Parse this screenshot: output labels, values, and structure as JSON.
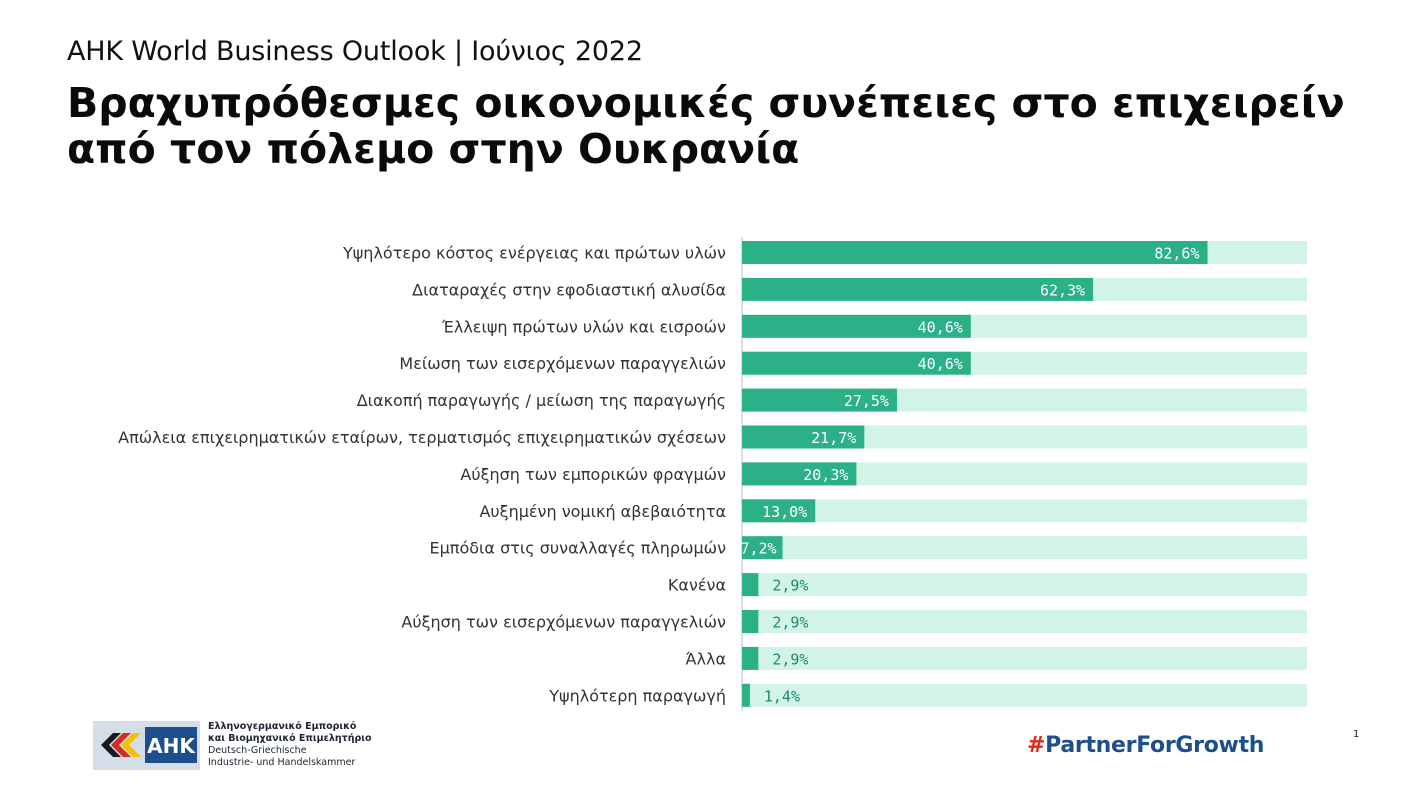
{
  "header": {
    "subtitle": "AHK World Business Outlook | Ιούνιος 2022",
    "title": "Βραχυπρόθεσμες οικονομικές συνέπειες στο επιχειρείν από τον πόλεμο στην Ουκρανία"
  },
  "colors": {
    "bar": "#2bb087",
    "track": "#d2f4e7"
  },
  "chart_data": {
    "type": "bar",
    "orientation": "horizontal",
    "xlim": [
      0,
      100
    ],
    "grid": false,
    "categories": [
      "Υψηλότερο κόστος ενέργειας και πρώτων υλών",
      "Διαταραχές στην εφοδιαστική αλυσίδα",
      "Έλλειψη πρώτων υλών και εισροών",
      "Μείωση των εισερχόμενων παραγγελιών",
      "Διακοπή παραγωγής / μείωση της παραγωγής",
      "Απώλεια επιχειρηματικών εταίρων, τερματισμός επιχειρηματικών σχέσεων",
      "Αύξηση των εμπορικών φραγμών",
      "Αυξημένη νομική αβεβαιότητα",
      "Εμπόδια στις συναλλαγές πληρωμών",
      "Κανένα",
      "Αύξηση των εισερχόμενων παραγγελιών",
      "Άλλα",
      "Υψηλότερη παραγωγή"
    ],
    "values": [
      82.6,
      62.3,
      40.6,
      40.6,
      27.5,
      21.7,
      20.3,
      13.0,
      7.2,
      2.9,
      2.9,
      2.9,
      1.4
    ],
    "value_labels": [
      "82,6%",
      "62,3%",
      "40,6%",
      "40,6%",
      "27,5%",
      "21,7%",
      "20,3%",
      "13,0%",
      "7,2%",
      "2,9%",
      "2,9%",
      "2,9%",
      "1,4%"
    ]
  },
  "footer": {
    "logo_abbr": "AHK",
    "org_line1": "Ελληνογερμανικό Εμπορικό",
    "org_line2": "και Βιομηχανικό Επιμελητήριο",
    "org_line3": "Deutsch-Griechische",
    "org_line4": "Industrie- und Handelskammer",
    "hashtag_symbol": "#",
    "hashtag_text": "PartnerForGrowth",
    "page_number": "1"
  }
}
